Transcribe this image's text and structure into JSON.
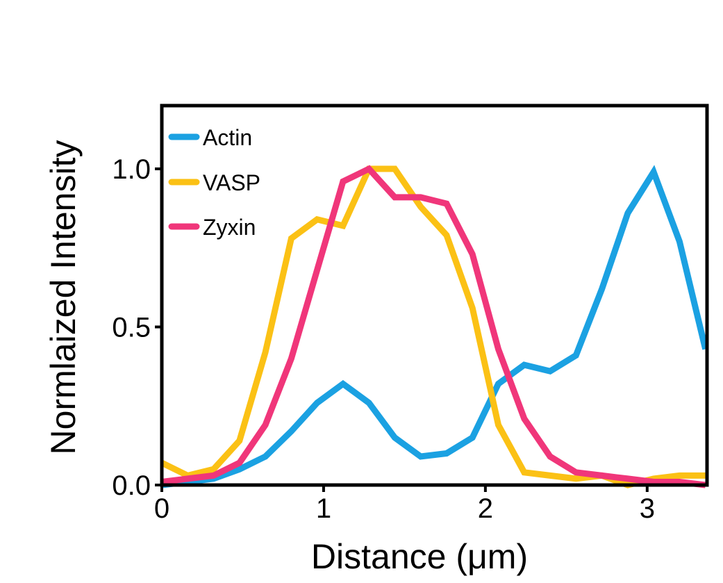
{
  "chart_data": {
    "type": "line",
    "title": "",
    "xlabel": "Distance (μm)",
    "ylabel": "Normlaized Intensity",
    "xlim": [
      0,
      3.37
    ],
    "ylim": [
      0,
      1.2
    ],
    "xticks": [
      0,
      1,
      2,
      3
    ],
    "xtick_labels": [
      "0",
      "1",
      "2",
      "3"
    ],
    "yticks": [
      0,
      0.5,
      1.0
    ],
    "ytick_labels": [
      "0.0",
      "0.5",
      "1.0"
    ],
    "grid": false,
    "legend_position": "top-left",
    "x": [
      0,
      0.16,
      0.32,
      0.48,
      0.64,
      0.8,
      0.96,
      1.12,
      1.28,
      1.44,
      1.6,
      1.76,
      1.92,
      2.08,
      2.24,
      2.4,
      2.56,
      2.72,
      2.88,
      3.04,
      3.2,
      3.36
    ],
    "series": [
      {
        "name": "Actin",
        "color": "#1ba1e2",
        "values": [
          0.0,
          0.01,
          0.02,
          0.05,
          0.09,
          0.17,
          0.26,
          0.32,
          0.26,
          0.15,
          0.09,
          0.1,
          0.15,
          0.32,
          0.38,
          0.36,
          0.41,
          0.62,
          0.86,
          0.99,
          0.77,
          0.43
        ]
      },
      {
        "name": "VASP",
        "color": "#fbc115",
        "values": [
          0.07,
          0.03,
          0.05,
          0.14,
          0.42,
          0.78,
          0.84,
          0.82,
          1.0,
          1.0,
          0.88,
          0.79,
          0.56,
          0.19,
          0.04,
          0.03,
          0.02,
          0.03,
          0.0,
          0.02,
          0.03,
          0.03
        ]
      },
      {
        "name": "Zyxin",
        "color": "#f0367a",
        "values": [
          0.01,
          0.02,
          0.03,
          0.07,
          0.19,
          0.4,
          0.68,
          0.96,
          1.0,
          0.91,
          0.91,
          0.89,
          0.73,
          0.43,
          0.21,
          0.09,
          0.04,
          0.03,
          0.02,
          0.01,
          0.01,
          0.0
        ]
      }
    ]
  }
}
